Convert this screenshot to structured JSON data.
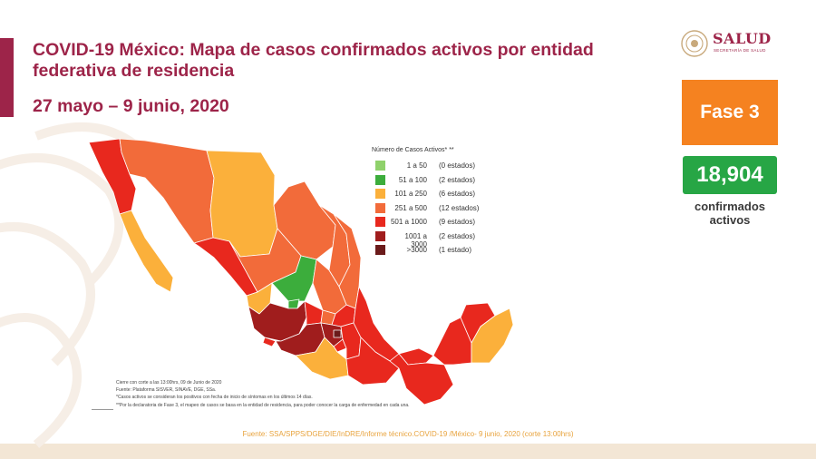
{
  "header": {
    "title": "COVID-19 México: Mapa de casos confirmados activos por entidad federativa de residencia",
    "date_range": "27 mayo – 9 junio, 2020"
  },
  "logo": {
    "name": "SALUD",
    "subtitle": "SECRETARÍA DE SALUD"
  },
  "colors": {
    "brand": "#9d2449",
    "phase_orange": "#f58220",
    "count_green": "#27a645",
    "source_text": "#e8a33d"
  },
  "phase": {
    "label": "Fase 3"
  },
  "active_cases": {
    "count": "18,904",
    "label": "confirmados activos"
  },
  "legend": {
    "title": "Número de Casos Activos* **",
    "items": [
      {
        "range": "1 a 50",
        "states": "(0 estados)",
        "color": "#8fd16b"
      },
      {
        "range": "51 a 100",
        "states": "(2 estados)",
        "color": "#3cad3c"
      },
      {
        "range": "101 a 250",
        "states": "(6 estados)",
        "color": "#fbb03b"
      },
      {
        "range": "251 a 500",
        "states": "(12 estados)",
        "color": "#f26b3a"
      },
      {
        "range": "501 a 1000",
        "states": "(9 estados)",
        "color": "#e8281e"
      },
      {
        "range": "1001 a 3000",
        "states": "(2 estados)",
        "color": "#a01d1d"
      },
      {
        "range": ">3000",
        "states": "(1 estado)",
        "color": "#6b1b1b"
      }
    ]
  },
  "notes": [
    "Cierre con corte a las 13:00hrs, 09 de Junio de 2020",
    "Fuente: Plataforma SISVER, SINAVE, DGE, SSa.",
    "*Casos activos se consideran los positivos con fecha de inicio de síntomas en los últimos 14 días.",
    "**Por la declaratoria de Fase 3, el mapeo de casos se basa en la entidad de residencia, para poder conocer la carga de enfermedad en cada una."
  ],
  "source": "Fuente: SSA/SPPS/DGE/DIE/InDRE/Informe técnico.COVID-19 /México- 9 junio, 2020 (corte 13:00hrs)"
}
